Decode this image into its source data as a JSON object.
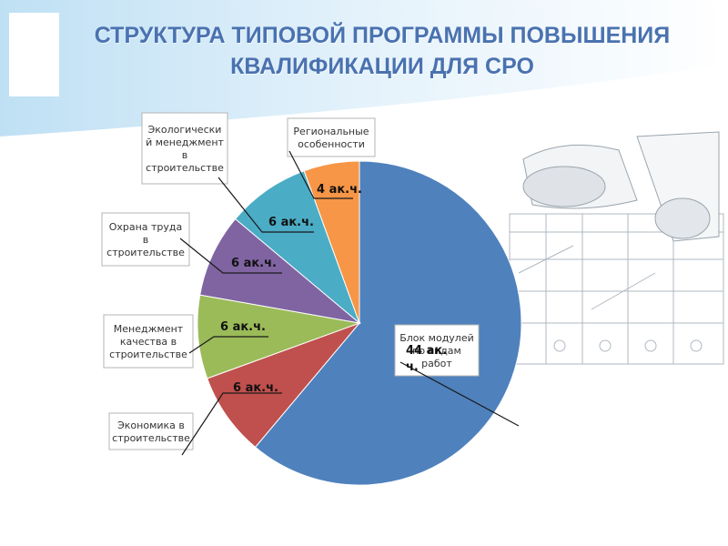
{
  "title_lines": [
    "СТРУКТУРА ТИПОВОЙ ПРОГРАММЫ ПОВЫШЕНИЯ",
    "КВАЛИФИКАЦИИ ДЛЯ СРО"
  ],
  "colors": {
    "title": "#4a72b0",
    "slices": [
      "#4f81bd",
      "#c0504d",
      "#9bbb59",
      "#8064a2",
      "#4bacc6",
      "#f79646"
    ]
  },
  "chart_data": {
    "type": "pie",
    "categories": [
      "Блок модулей по видам работ",
      "Экономика в строительстве",
      "Менеджмент качества в строительстве",
      "Охрана труда в строительстве",
      "Экологический менеджмент в строительстве",
      "Региональные особенности"
    ],
    "values": [
      44,
      6,
      6,
      6,
      6,
      4
    ],
    "value_labels": [
      "44 ак. ч.",
      "6 ак.ч.",
      "6 ак.ч.",
      "6 ак.ч.",
      "6 ак.ч.",
      "4 ак.ч."
    ],
    "label_lines": [
      [
        "Блок модулей",
        "по видам",
        "работ"
      ],
      [
        "Экономика в",
        "строительстве"
      ],
      [
        "Менеджмент",
        "качества в",
        "строительстве"
      ],
      [
        "Охрана труда",
        "в",
        "строительстве"
      ],
      [
        "Экологически",
        "й менеджмент",
        "в",
        "строительстве"
      ],
      [
        "Региональные",
        "особенности"
      ]
    ],
    "value_label_lines": [
      [
        "44 ак.",
        "ч."
      ],
      [
        "6 ак.ч."
      ],
      [
        "6 ак.ч."
      ],
      [
        "6 ак.ч."
      ],
      [
        "6 ак.ч."
      ],
      [
        "4 ак.ч."
      ]
    ]
  }
}
